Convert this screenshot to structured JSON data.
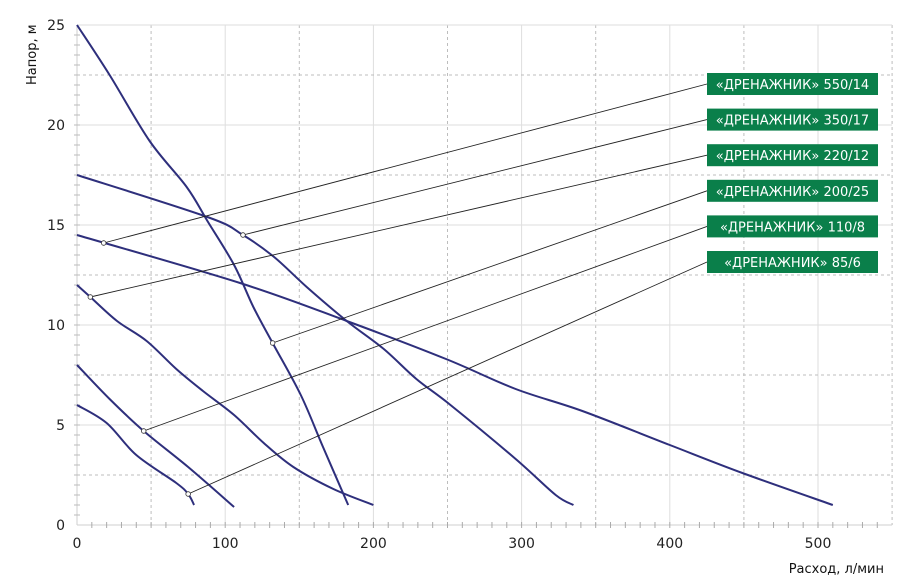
{
  "chart_data": {
    "type": "line",
    "title": "",
    "xlabel": "Расход, л/мин",
    "ylabel": "Напор, м",
    "xlim": [
      0,
      550
    ],
    "ylim": [
      0,
      25
    ],
    "xticks": [
      0,
      100,
      200,
      300,
      400,
      500
    ],
    "yticks": [
      0,
      5,
      10,
      15,
      20,
      25
    ],
    "grid": true,
    "line_color": "#2e2f7c",
    "label_color": "#0a7f4a",
    "series": [
      {
        "name": "«ДРЕНАЖНИК» 550/14",
        "marker": [
          18,
          14.1
        ],
        "points": [
          [
            0,
            14.5
          ],
          [
            110,
            12.1
          ],
          [
            182,
            10.2
          ],
          [
            249,
            8.3
          ],
          [
            296,
            6.8
          ],
          [
            341,
            5.7
          ],
          [
            400,
            4.0
          ],
          [
            449,
            2.6
          ],
          [
            510,
            1.0
          ]
        ]
      },
      {
        "name": "«ДРЕНАЖНИК» 350/17",
        "marker": [
          112,
          14.5
        ],
        "points": [
          [
            0,
            17.5
          ],
          [
            88,
            15.4
          ],
          [
            112,
            14.5
          ],
          [
            133,
            13.4
          ],
          [
            155,
            11.9
          ],
          [
            182,
            10.2
          ],
          [
            207,
            8.8
          ],
          [
            229,
            7.3
          ],
          [
            252,
            6.0
          ],
          [
            296,
            3.3
          ],
          [
            323,
            1.5
          ],
          [
            335,
            1.0
          ]
        ]
      },
      {
        "name": "«ДРЕНАЖНИК» 220/12",
        "marker": [
          9,
          11.4
        ],
        "points": [
          [
            0,
            12
          ],
          [
            9,
            11.4
          ],
          [
            27,
            10.2
          ],
          [
            47,
            9.2
          ],
          [
            67,
            7.8
          ],
          [
            85,
            6.7
          ],
          [
            106,
            5.5
          ],
          [
            126,
            4.1
          ],
          [
            146,
            2.9
          ],
          [
            173,
            1.8
          ],
          [
            200,
            1.0
          ]
        ]
      },
      {
        "name": "«ДРЕНАЖНИК» 200/25",
        "marker": [
          132,
          9.1
        ],
        "points": [
          [
            0,
            25
          ],
          [
            22,
            22.5
          ],
          [
            49,
            19.2
          ],
          [
            74,
            16.9
          ],
          [
            88,
            15.2
          ],
          [
            106,
            13.0
          ],
          [
            119,
            10.9
          ],
          [
            132,
            9.1
          ],
          [
            151,
            6.5
          ],
          [
            166,
            3.9
          ],
          [
            183,
            1.0
          ]
        ]
      },
      {
        "name": "«ДРЕНАЖНИК» 110/8",
        "marker": [
          45,
          4.7
        ],
        "points": [
          [
            0,
            8
          ],
          [
            22,
            6.3
          ],
          [
            45,
            4.7
          ],
          [
            75,
            2.9
          ],
          [
            106,
            0.9
          ]
        ]
      },
      {
        "name": "«ДРЕНАЖНИК» 85/6",
        "marker": [
          75,
          1.55
        ],
        "points": [
          [
            0,
            6
          ],
          [
            20,
            5.1
          ],
          [
            40,
            3.5
          ],
          [
            67,
            2.1
          ],
          [
            75,
            1.55
          ],
          [
            79,
            1.0
          ]
        ]
      }
    ]
  }
}
